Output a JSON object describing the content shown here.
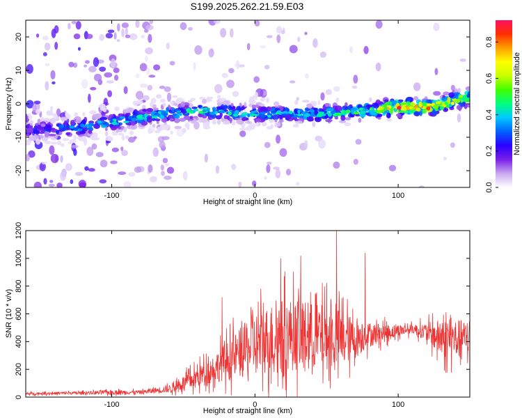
{
  "title": "S199.2025.262.21.59.E03",
  "colors": {
    "background": "#ffffff",
    "snr_line": "#ee3333",
    "spectral_low": "#d8c8f0",
    "spectral_mid": "#4a00e0",
    "spectral_high": "#ff2a2a"
  },
  "chart_data": [
    {
      "type": "heatmap",
      "name": "spectrogram",
      "title": "",
      "xlabel": "Height of straight line (km)",
      "ylabel": "Frequency (Hz)",
      "xlim": [
        -160,
        150
      ],
      "ylim": [
        -25,
        25
      ],
      "xticks": [
        -100,
        0,
        100
      ],
      "xtick_labels": [
        "-100",
        "0",
        "100"
      ],
      "yticks": [
        -20,
        -10,
        0,
        10,
        20
      ],
      "ytick_labels": [
        "-20",
        "-10",
        "0",
        "10",
        "20"
      ],
      "colorbar": {
        "label": "Normalized spectral amplitude",
        "range": [
          0.0,
          0.92
        ],
        "ticks": [
          0.0,
          0.2,
          0.4,
          0.6,
          0.8
        ],
        "tick_labels": [
          "0.0",
          "0.2",
          "0.4",
          "0.6",
          "0.8"
        ],
        "colormap": [
          "#ffffff",
          "#c8a8f0",
          "#7a20e8",
          "#2a00ff",
          "#0060ff",
          "#00c8ff",
          "#00ff80",
          "#40ff00",
          "#c8ff00",
          "#ffff00",
          "#ffa000",
          "#ff3000",
          "#ff1060"
        ]
      },
      "ridge": {
        "description_points_x": [
          -160,
          -120,
          -80,
          -40,
          0,
          40,
          80,
          100,
          120,
          150
        ],
        "center_frequency": [
          -8,
          -7,
          -4,
          -2,
          -3,
          -3,
          -2,
          -1,
          -1,
          2
        ],
        "peak_amplitude": [
          0.25,
          0.4,
          0.45,
          0.5,
          0.45,
          0.45,
          0.55,
          0.92,
          0.85,
          0.6
        ]
      }
    },
    {
      "type": "line",
      "name": "snr",
      "title": "",
      "xlabel": "Height of straight line (km)",
      "ylabel": "SNR (10 * v/v)",
      "xlim": [
        -160,
        150
      ],
      "ylim": [
        0,
        1200
      ],
      "xticks": [
        -100,
        0,
        100
      ],
      "xtick_labels": [
        "-100",
        "0",
        "100"
      ],
      "yticks": [
        0,
        200,
        400,
        600,
        800,
        1000,
        1200
      ],
      "ytick_labels": [
        "0",
        "200",
        "400",
        "600",
        "800",
        "1000",
        "1200"
      ],
      "envelope": {
        "x": [
          -160,
          -120,
          -100,
          -80,
          -60,
          -45,
          -30,
          -20,
          -10,
          0,
          10,
          20,
          30,
          40,
          50,
          60,
          70,
          80,
          90,
          100,
          110,
          120,
          130,
          140,
          150
        ],
        "baseline": [
          25,
          30,
          35,
          35,
          60,
          120,
          200,
          260,
          320,
          380,
          420,
          450,
          450,
          440,
          430,
          420,
          420,
          450,
          460,
          480,
          490,
          470,
          420,
          420,
          430
        ],
        "spread": [
          15,
          20,
          30,
          25,
          50,
          120,
          180,
          250,
          330,
          420,
          450,
          480,
          470,
          440,
          420,
          380,
          260,
          160,
          120,
          80,
          60,
          120,
          260,
          260,
          220
        ]
      },
      "annotated_peaks": [
        {
          "x": -23,
          "y": 720
        },
        {
          "x": 18,
          "y": 1000
        },
        {
          "x": 32,
          "y": 1020
        },
        {
          "x": 57,
          "y": 1200
        },
        {
          "x": 77,
          "y": 1040
        }
      ]
    }
  ]
}
